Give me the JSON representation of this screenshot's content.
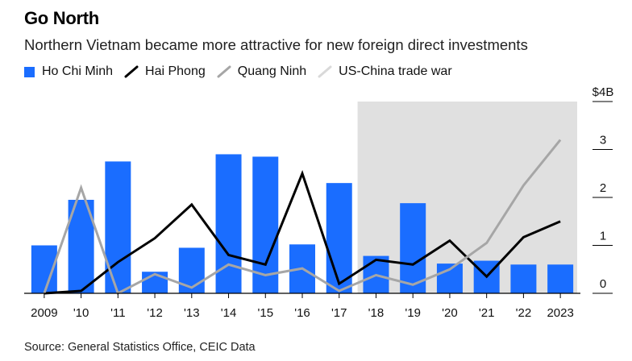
{
  "title": "Go North",
  "subtitle": "Northern Vietnam became more attractive for new foreign direct investments",
  "source": "Source: General Statistics Office, CEIC Data",
  "legend": [
    {
      "label": "Ho Chi Minh",
      "kind": "bar",
      "color": "#1a6dff"
    },
    {
      "label": "Hai Phong",
      "kind": "line",
      "color": "#000000"
    },
    {
      "label": "Quang Ninh",
      "kind": "line",
      "color": "#a6a6a6"
    },
    {
      "label": "US-China trade war",
      "kind": "shade",
      "color": "#e0e0e0"
    }
  ],
  "chart_data": {
    "type": "bar",
    "categories": [
      "2009",
      "'10",
      "'11",
      "'12",
      "'13",
      "'14",
      "'15",
      "'16",
      "'17",
      "'18",
      "'19",
      "'20",
      "'21",
      "'22",
      "2023"
    ],
    "series": [
      {
        "name": "Ho Chi Minh",
        "type": "bar",
        "color": "#1a6dff",
        "values": [
          1.0,
          1.95,
          2.75,
          0.45,
          0.95,
          2.9,
          2.85,
          1.02,
          2.3,
          0.78,
          1.88,
          0.62,
          0.68,
          0.6,
          0.6
        ]
      },
      {
        "name": "Hai Phong",
        "type": "line",
        "color": "#000000",
        "values": [
          0.0,
          0.05,
          0.65,
          1.15,
          1.85,
          0.8,
          0.6,
          2.5,
          0.2,
          0.7,
          0.6,
          1.1,
          0.35,
          1.17,
          1.5
        ]
      },
      {
        "name": "Quang Ninh",
        "type": "line",
        "color": "#a6a6a6",
        "values": [
          0.0,
          2.2,
          0.0,
          0.4,
          0.12,
          0.6,
          0.38,
          0.52,
          0.05,
          0.38,
          0.18,
          0.5,
          1.05,
          2.25,
          3.2
        ]
      }
    ],
    "shaded_region": {
      "label": "US-China trade war",
      "from": "'18",
      "to": "2023",
      "color": "#e0e0e0"
    },
    "y_ticks": [
      0,
      1,
      2,
      3,
      4
    ],
    "y_tick_labels": [
      "0",
      "1",
      "2",
      "3",
      "$4B"
    ],
    "ylim": [
      0,
      4
    ],
    "xlabel": "",
    "ylabel": "",
    "grid": false,
    "legend_position": "top-left"
  }
}
